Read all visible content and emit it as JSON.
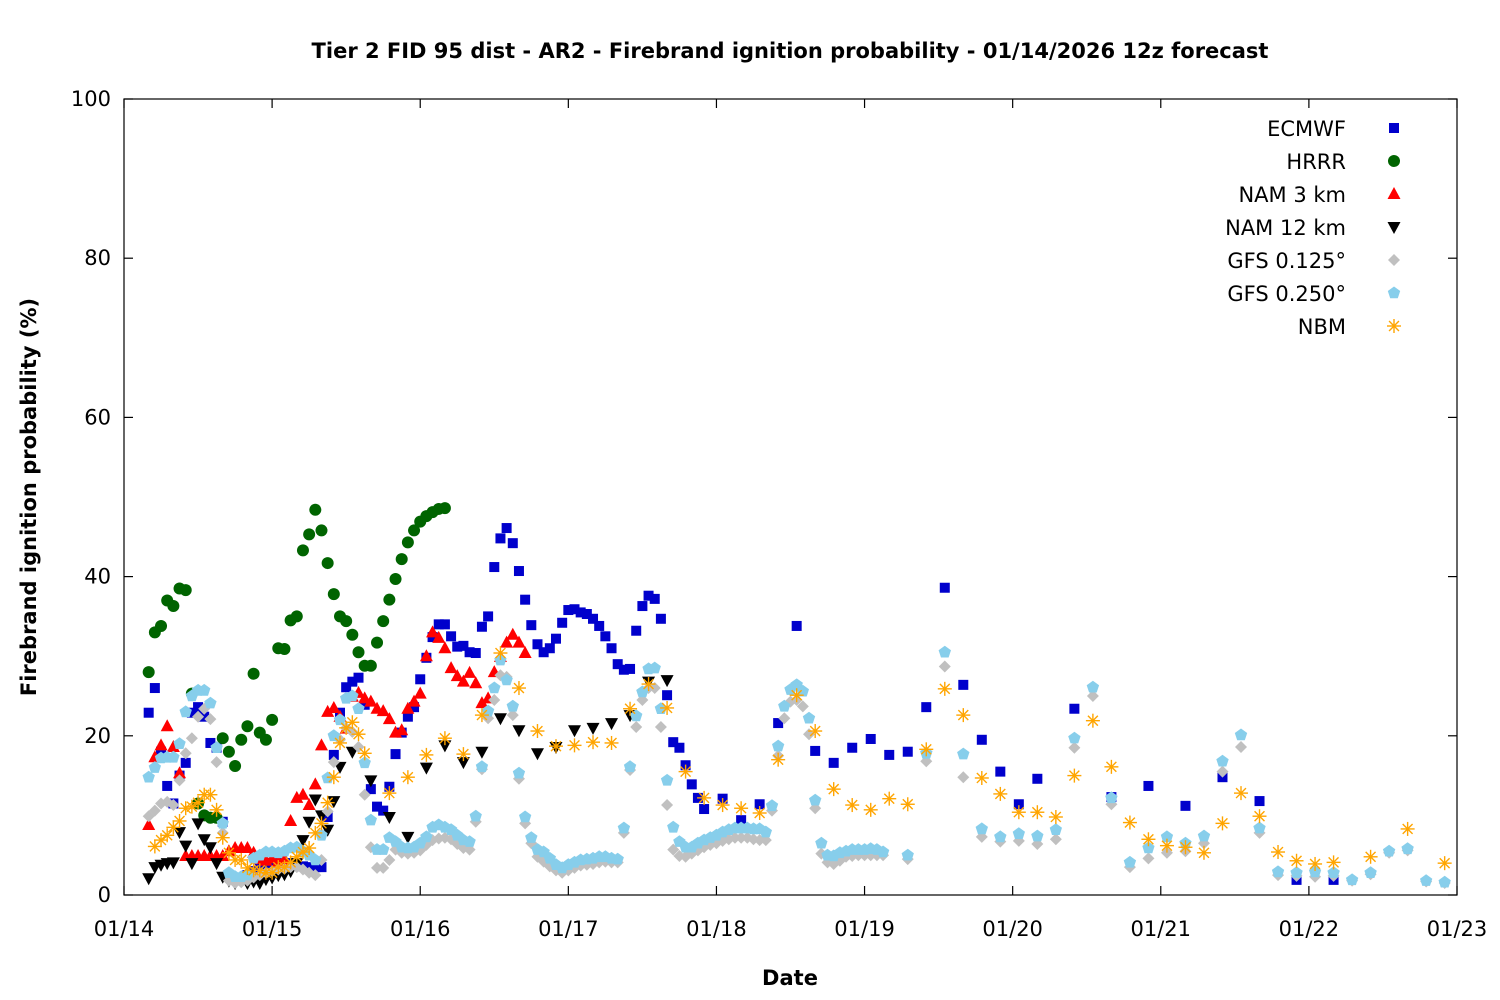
{
  "chart_data": {
    "type": "scatter",
    "title": "Tier 2 FID 95 dist - AR2 - Firebrand ignition probability - 01/14/2026 12z forecast",
    "xlabel": "Date",
    "ylabel": "Firebrand ignition probability (%)",
    "x_units": "hours since 01/14 00:00",
    "xlim": [
      0,
      216
    ],
    "ylim": [
      0,
      100
    ],
    "yticks": [
      "0",
      "20",
      "40",
      "60",
      "80",
      "100"
    ],
    "ytick_values": [
      0,
      20,
      40,
      60,
      80,
      100
    ],
    "xticks": [
      "01/14",
      "01/15",
      "01/16",
      "01/17",
      "01/18",
      "01/19",
      "01/20",
      "01/21",
      "01/22",
      "01/23"
    ],
    "xtick_values": [
      0,
      24,
      48,
      72,
      96,
      120,
      144,
      168,
      192,
      216
    ],
    "grid": false,
    "legend_position": "top-right",
    "series": [
      {
        "name": "ECMWF",
        "marker": "square",
        "color": "#0000cc",
        "segments": [
          {
            "start": 4,
            "step": 1,
            "values": [
              22.9,
              26,
              18,
              13.7,
              11.5,
              15,
              16.6,
              22.9,
              23.6,
              22.4,
              19.1,
              18.5,
              9.2,
              2.5,
              2,
              2,
              2.5,
              3,
              3.5,
              4,
              4,
              4.2,
              4,
              4,
              3.8,
              3.6,
              3.5,
              3.5,
              3.5,
              9.8,
              17.6,
              22.9,
              26.1,
              26.8,
              27.3,
              23.9,
              13.3,
              11.1,
              10.6,
              13.6,
              17.7,
              20.4,
              22.4,
              23.6,
              27.1,
              29.8,
              32.4,
              34,
              34,
              32.5,
              31.2,
              31.3,
              30.5,
              30.4,
              33.7,
              35,
              41.2,
              44.8,
              46.1,
              44.2,
              40.7,
              37.1,
              33.9,
              31.5,
              30.5,
              31,
              32.2,
              34.2,
              35.8,
              35.9,
              35.5,
              35.3,
              34.7,
              33.8,
              32.5,
              31,
              29,
              28.3,
              28.4,
              33.2,
              36.3,
              37.6,
              37.2,
              34.7,
              25.1,
              19.2,
              18.5,
              16.3,
              13.9,
              12.2,
              10.8
            ]
          },
          {
            "start": 97,
            "step": 3,
            "values": [
              12.1,
              9.4,
              11.4,
              21.6,
              33.8,
              18.1,
              16.6,
              18.5,
              19.6,
              17.6,
              18,
              23.6,
              38.6,
              26.4,
              19.5,
              15.5,
              11.4,
              14.6
            ]
          },
          {
            "start": 154,
            "step": 6,
            "values": [
              23.4,
              12.3,
              13.7,
              11.2,
              14.8,
              11.8,
              1.9,
              1.9
            ]
          }
        ]
      },
      {
        "name": "HRRR",
        "marker": "circle",
        "color": "#006400",
        "segments": [
          {
            "start": 4,
            "step": 1,
            "values": [
              28,
              33,
              33.8,
              37,
              36.3,
              38.5,
              38.3,
              25.3,
              11.5,
              10,
              9.7,
              9.7,
              19.7,
              18,
              16.2,
              19.5,
              21.2,
              27.8,
              20.4,
              19.5,
              22,
              31,
              30.9,
              34.5,
              35,
              43.3,
              45.3,
              48.4,
              45.8,
              41.7,
              37.8,
              35,
              34.4,
              32.7,
              30.5,
              28.8,
              28.8,
              31.7,
              34.4,
              37.1,
              39.7,
              42.2,
              44.3,
              45.8,
              46.9,
              47.6,
              48.1,
              48.5,
              48.6
            ]
          }
        ]
      },
      {
        "name": "NAM 3 km",
        "marker": "triangle-up",
        "color": "#ff0000",
        "segments": [
          {
            "start": 4,
            "step": 1,
            "values": [
              8.8,
              17.3,
              18.8,
              21.2,
              18.6,
              15.3,
              4.9,
              4.9,
              4.9,
              4.9,
              4.9,
              4.9,
              4.9,
              5.5,
              5.9,
              5.9,
              5.9,
              5.3,
              4.5,
              4.3,
              4.6,
              4.2,
              4.5,
              9.3,
              12.2,
              12.6,
              11.3,
              13.9,
              18.8,
              23,
              23.5,
              22.4,
              20.9,
              24.9,
              25.4,
              24.7,
              24.3,
              23.4,
              23.1,
              22.1,
              20.4,
              20.7,
              23.4,
              24.3,
              25.3,
              30,
              33,
              32.3,
              31,
              28.5,
              27.5,
              26.8,
              27.9,
              26.6,
              24.1,
              24.7,
              28,
              29.9,
              31.7,
              32.7,
              31.7,
              30.4
            ]
          }
        ]
      },
      {
        "name": "NAM 12 km",
        "marker": "triangle-down",
        "color": "#000000",
        "segments": [
          {
            "start": 4,
            "step": 1,
            "values": [
              2.1,
              3.5,
              3.8,
              4,
              4.1,
              7.9,
              6.2,
              4,
              9,
              7,
              6,
              4,
              2.3,
              1.8,
              1.5,
              1.8,
              1.5,
              1.7,
              1.5,
              2,
              2.2,
              2.5,
              2.6,
              3,
              4,
              6.9,
              9.2,
              12,
              10,
              8.2,
              11.8,
              16.1
            ]
          },
          {
            "start": 37,
            "step": 3,
            "values": [
              18,
              14.4,
              9.8,
              7.3,
              16,
              18.8,
              16.7,
              18,
              22.2,
              20.7,
              17.8,
              18.6,
              20.7,
              21,
              21.6,
              22.6,
              26.8,
              27
            ]
          }
        ]
      },
      {
        "name": "GFS 0.125°",
        "marker": "diamond",
        "color": "#c0c0c0",
        "segments": [
          {
            "start": 4,
            "step": 1,
            "values": [
              9.9,
              10.6,
              11.5,
              11.7,
              11.3,
              14.4,
              17.8,
              19.7,
              22.4,
              23.4,
              22.1,
              16.7,
              7.8,
              1.8,
              1.5,
              1.6,
              1.8,
              2.2,
              2.5,
              2.8,
              3,
              3.2,
              3.3,
              3.5,
              3.5,
              3.2,
              2.8,
              2.5,
              4.4,
              10.5,
              16.7,
              19.5,
              21,
              20.5,
              18.6,
              12.6,
              6,
              3.4,
              3.4,
              4.4,
              5.7,
              5.3,
              5.2,
              5.3,
              5.6,
              6.3,
              6.9,
              7.1,
              7.2,
              7,
              6.4,
              5.9,
              5.7,
              9.2,
              15.8,
              22.2,
              24.5,
              27.6,
              27.4,
              22.6,
              14.6,
              9,
              6.5,
              4.8,
              4.2,
              3.6,
              3.1,
              2.8,
              3.1,
              3.4,
              3.7,
              3.8,
              3.9,
              4.1,
              4.2,
              4.1,
              4.1,
              7.8,
              15.7,
              21.1,
              24.5,
              26,
              26,
              21.1,
              11.3,
              5.7,
              4.9,
              4.8,
              5.2,
              5.6,
              6,
              6.3,
              6.5,
              6.8,
              7,
              7.2,
              7.2,
              7.2,
              7,
              6.9,
              6.9,
              10.6,
              17.5,
              22.2,
              24.3,
              24.5,
              23.7,
              20.2,
              10.9,
              5.2,
              4.1,
              3.9,
              4.3,
              4.8,
              4.9,
              5,
              5,
              5,
              5,
              5
            ]
          },
          {
            "start": 127,
            "step": 3,
            "values": [
              4.5,
              16.8,
              28.7,
              14.8,
              7.3,
              6.7,
              6.8,
              6.4,
              7,
              18.5,
              25,
              11.4,
              3.5,
              4.6,
              5.3,
              5.5,
              6.5,
              15.5,
              18.6,
              7.8,
              2.5,
              2.4,
              2.3,
              2.4,
              1.8,
              2.6,
              5.3,
              5.6,
              1.7,
              1.5
            ]
          }
        ]
      },
      {
        "name": "GFS 0.250°",
        "marker": "pentagon",
        "color": "#87ceeb",
        "segments": [
          {
            "start": 4,
            "step": 1,
            "values": [
              14.8,
              16,
              17.2,
              17.3,
              17.3,
              19,
              23,
              25,
              25.7,
              25.7,
              24.1,
              18.5,
              9,
              2.8,
              2.3,
              2.3,
              2.5,
              4.6,
              5,
              5.4,
              5.4,
              5.3,
              5.5,
              5.9,
              6,
              5.5,
              5,
              4.4,
              7.5,
              14.7,
              20,
              22,
              24.7,
              25,
              23.4,
              16.6,
              9.4,
              5.7,
              5.7,
              7.2,
              6.7,
              6,
              5.9,
              6,
              6.5,
              7.3,
              8.5,
              8.8,
              8.5,
              8.2,
              7.5,
              6.9,
              6.7,
              9.9,
              16.1,
              23.1,
              26,
              29.5,
              27,
              23.7,
              15.3,
              9.8,
              7.2,
              5.7,
              5.4,
              4.6,
              3.8,
              3.4,
              3.8,
              4.1,
              4.4,
              4.5,
              4.6,
              4.8,
              4.8,
              4.6,
              4.5,
              8.4,
              16.1,
              22.5,
              25.5,
              28.4,
              28.5,
              23.4,
              14.4,
              8.5,
              6.7,
              6,
              6,
              6.5,
              6.9,
              7.2,
              7.5,
              7.9,
              8.2,
              8.4,
              8.4,
              8.4,
              8.3,
              8.3,
              7.9,
              11.2,
              18.7,
              23.7,
              25.8,
              26.4,
              25.6,
              22.2,
              11.9,
              6.5,
              5,
              4.9,
              5.3,
              5.5,
              5.7,
              5.7,
              5.7,
              5.8,
              5.7,
              5.4
            ]
          },
          {
            "start": 127,
            "step": 3,
            "values": [
              5,
              17.8,
              30.5,
              17.7,
              8.3,
              7.3,
              7.7,
              7.4,
              8.2,
              19.7,
              26.1,
              12.2,
              4.1,
              5.9,
              7.3,
              6.5,
              7.4,
              16.8,
              20.1,
              8.4,
              2.9,
              2.8,
              2.9,
              2.8,
              1.9,
              2.8,
              5.5,
              5.8,
              1.8,
              1.6
            ]
          }
        ]
      },
      {
        "name": "NBM",
        "marker": "asterisk",
        "color": "#ffa500",
        "segments": [
          {
            "start": 5,
            "step": 1,
            "values": [
              6.1,
              6.9,
              7.5,
              8.5,
              9.3,
              10.9,
              11.1,
              11.6,
              12.6,
              12.6,
              10.7,
              7.2,
              5.3,
              4.4,
              4.4,
              3.4,
              3.1,
              3.1,
              2.8,
              2.8,
              3.5,
              3.5,
              4.1,
              4.8,
              5.4,
              5.9,
              7.8,
              9,
              11.6,
              14.8,
              19.1,
              21,
              21.7,
              20.2,
              17.8
            ]
          },
          {
            "start": 43,
            "step": 3,
            "values": [
              12.8,
              14.8,
              17.6,
              19.7,
              17.7,
              22.6,
              30.4,
              26,
              20.6,
              18.7,
              18.8,
              19.2,
              19.1,
              23.4,
              26.5,
              23.5,
              15.5,
              12.2,
              11.3,
              10.9,
              10.3,
              17,
              25.1,
              20.6,
              13.3,
              11.3,
              10.7,
              12.1,
              11.4,
              18.3,
              25.9,
              22.6,
              14.7,
              12.7,
              10.4,
              10.4,
              9.8,
              15,
              21.9,
              16.1,
              9.1,
              7,
              6.2,
              6,
              5.3,
              9,
              12.8,
              9.9,
              5.4,
              4.3,
              3.9,
              4.1
            ]
          },
          {
            "start": 202,
            "step": 6,
            "values": [
              4.8,
              8.3,
              4
            ]
          }
        ]
      }
    ]
  }
}
